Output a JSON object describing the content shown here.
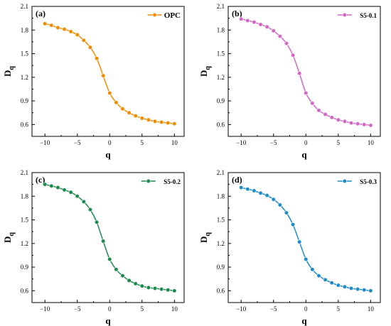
{
  "chart_data": [
    {
      "type": "line",
      "panel_label": "(a)",
      "legend": "OPC",
      "legend_position": "top-right",
      "color": "#f08c00",
      "xlabel": "q",
      "ylabel": "D",
      "ylabel_sub": "q",
      "xlim": [
        -12,
        11.5
      ],
      "ylim": [
        0.45,
        2.1
      ],
      "xticks": [
        -10,
        -5,
        0,
        5,
        10
      ],
      "yticks": [
        0.6,
        0.9,
        1.2,
        1.5,
        1.8,
        2.1
      ],
      "x": [
        -10,
        -9,
        -8,
        -7,
        -6,
        -5,
        -4,
        -3,
        -2,
        -1,
        0,
        1,
        2,
        3,
        4,
        5,
        6,
        7,
        8,
        9,
        10
      ],
      "y": [
        1.88,
        1.86,
        1.83,
        1.81,
        1.78,
        1.74,
        1.67,
        1.58,
        1.44,
        1.22,
        1.0,
        0.88,
        0.8,
        0.75,
        0.71,
        0.68,
        0.66,
        0.64,
        0.63,
        0.62,
        0.61
      ]
    },
    {
      "type": "line",
      "panel_label": "(b)",
      "legend": "S5-0.1",
      "legend_position": "top-right",
      "color": "#d466c4",
      "xlabel": "q",
      "ylabel": "D",
      "ylabel_sub": "q",
      "xlim": [
        -12,
        11.5
      ],
      "ylim": [
        0.45,
        2.1
      ],
      "xticks": [
        -10,
        -5,
        0,
        5,
        10
      ],
      "yticks": [
        0.6,
        0.9,
        1.2,
        1.5,
        1.8,
        2.1
      ],
      "x": [
        -10,
        -9,
        -8,
        -7,
        -6,
        -5,
        -4,
        -3,
        -2,
        -1,
        0,
        1,
        2,
        3,
        4,
        5,
        6,
        7,
        8,
        9,
        10
      ],
      "y": [
        1.94,
        1.92,
        1.9,
        1.87,
        1.84,
        1.79,
        1.72,
        1.63,
        1.48,
        1.25,
        1.0,
        0.87,
        0.78,
        0.73,
        0.69,
        0.66,
        0.64,
        0.62,
        0.61,
        0.6,
        0.59
      ]
    },
    {
      "type": "line",
      "panel_label": "(c)",
      "legend": "S5-0.2",
      "legend_position": "top-right",
      "color": "#1b8a4c",
      "xlabel": "q",
      "ylabel": "D",
      "ylabel_sub": "q",
      "xlim": [
        -12,
        11.5
      ],
      "ylim": [
        0.45,
        2.1
      ],
      "xticks": [
        -10,
        -5,
        0,
        5,
        10
      ],
      "yticks": [
        0.6,
        0.9,
        1.2,
        1.5,
        1.8,
        2.1
      ],
      "x": [
        -10,
        -9,
        -8,
        -7,
        -6,
        -5,
        -4,
        -3,
        -2,
        -1,
        0,
        1,
        2,
        3,
        4,
        5,
        6,
        7,
        8,
        9,
        10
      ],
      "y": [
        1.95,
        1.93,
        1.91,
        1.88,
        1.85,
        1.8,
        1.73,
        1.63,
        1.47,
        1.23,
        1.0,
        0.87,
        0.79,
        0.73,
        0.69,
        0.66,
        0.64,
        0.63,
        0.62,
        0.61,
        0.6
      ]
    },
    {
      "type": "line",
      "panel_label": "(d)",
      "legend": "S5-0.3",
      "legend_position": "top-right",
      "color": "#1e8cc8",
      "xlabel": "q",
      "ylabel": "D",
      "ylabel_sub": "q",
      "xlim": [
        -12,
        11.5
      ],
      "ylim": [
        0.45,
        2.1
      ],
      "xticks": [
        -10,
        -5,
        0,
        5,
        10
      ],
      "yticks": [
        0.6,
        0.9,
        1.2,
        1.5,
        1.8,
        2.1
      ],
      "x": [
        -10,
        -9,
        -8,
        -7,
        -6,
        -5,
        -4,
        -3,
        -2,
        -1,
        0,
        1,
        2,
        3,
        4,
        5,
        6,
        7,
        8,
        9,
        10
      ],
      "y": [
        1.91,
        1.89,
        1.87,
        1.84,
        1.81,
        1.76,
        1.69,
        1.59,
        1.44,
        1.22,
        1.0,
        0.87,
        0.79,
        0.74,
        0.7,
        0.67,
        0.65,
        0.63,
        0.62,
        0.61,
        0.6
      ]
    }
  ]
}
